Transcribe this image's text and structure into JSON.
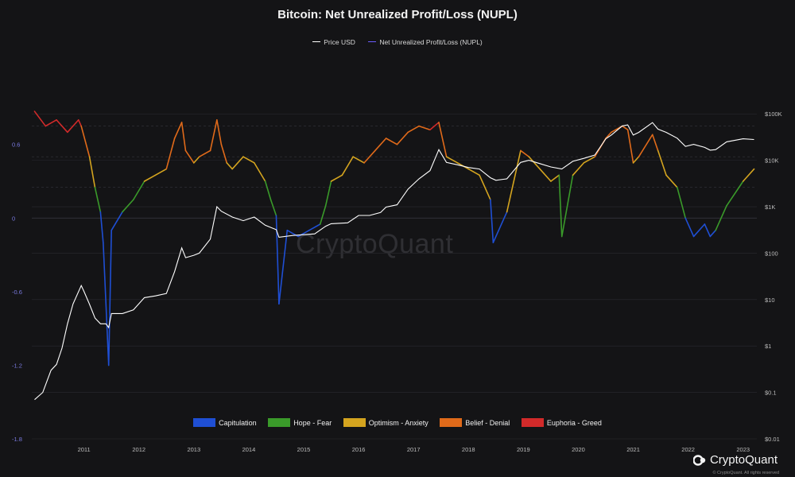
{
  "chart_data": {
    "type": "line",
    "title": "Bitcoin: Net Unrealized Profit/Loss (NUPL)",
    "legend_placement": "top",
    "series": [
      {
        "name": "Price USD",
        "axis": "right",
        "color": "#ffffff",
        "x": [
          2010.6,
          2010.75,
          2010.9,
          2011.0,
          2011.1,
          2011.2,
          2011.3,
          2011.45,
          2011.5,
          2011.6,
          2011.7,
          2011.8,
          2011.9,
          2011.95,
          2012.0,
          2012.2,
          2012.4,
          2012.6,
          2012.8,
          2013.0,
          2013.15,
          2013.28,
          2013.35,
          2013.5,
          2013.6,
          2013.8,
          2013.92,
          2014.0,
          2014.2,
          2014.4,
          2014.6,
          2014.8,
          2015.0,
          2015.05,
          2015.3,
          2015.5,
          2015.7,
          2015.9,
          2016.0,
          2016.3,
          2016.5,
          2016.7,
          2016.9,
          2017.0,
          2017.2,
          2017.4,
          2017.6,
          2017.8,
          2017.96,
          2018.1,
          2018.3,
          2018.5,
          2018.7,
          2018.9,
          2019.0,
          2019.2,
          2019.45,
          2019.6,
          2019.8,
          2020.0,
          2020.2,
          2020.4,
          2020.6,
          2020.8,
          2021.0,
          2021.1,
          2021.3,
          2021.4,
          2021.5,
          2021.6,
          2021.85,
          2021.95,
          2022.1,
          2022.3,
          2022.45,
          2022.6,
          2022.8,
          2022.9,
          2023.0,
          2023.2,
          2023.5,
          2023.7
        ],
        "values": [
          0.07,
          0.1,
          0.3,
          0.4,
          0.9,
          3,
          8,
          20,
          15,
          8,
          4,
          3,
          3,
          2.5,
          5,
          5,
          6,
          11,
          12,
          13.5,
          40,
          130,
          80,
          90,
          100,
          200,
          1000,
          800,
          600,
          500,
          600,
          400,
          320,
          220,
          240,
          250,
          260,
          380,
          430,
          450,
          650,
          650,
          750,
          980,
          1100,
          2400,
          4000,
          6000,
          17000,
          9000,
          8000,
          7000,
          6500,
          4200,
          3700,
          4000,
          9000,
          10000,
          8500,
          7200,
          6500,
          9500,
          11000,
          13000,
          29000,
          35000,
          55000,
          58000,
          35000,
          40000,
          65000,
          47000,
          40000,
          30000,
          20000,
          22000,
          19000,
          16500,
          17000,
          25000,
          29000,
          28000
        ]
      },
      {
        "name": "Net Unrealized Profit/Loss (NUPL)",
        "axis": "left",
        "color": "#6a5cff",
        "x": [
          2010.6,
          2010.8,
          2011.0,
          2011.2,
          2011.4,
          2011.45,
          2011.6,
          2011.7,
          2011.8,
          2011.85,
          2011.9,
          2011.95,
          2012.0,
          2012.2,
          2012.4,
          2012.6,
          2012.8,
          2013.0,
          2013.15,
          2013.28,
          2013.35,
          2013.5,
          2013.6,
          2013.8,
          2013.92,
          2014.0,
          2014.1,
          2014.2,
          2014.4,
          2014.6,
          2014.8,
          2014.9,
          2015.0,
          2015.05,
          2015.2,
          2015.4,
          2015.6,
          2015.8,
          2015.9,
          2016.0,
          2016.2,
          2016.4,
          2016.6,
          2016.8,
          2017.0,
          2017.2,
          2017.4,
          2017.6,
          2017.8,
          2017.96,
          2018.1,
          2018.3,
          2018.5,
          2018.7,
          2018.9,
          2018.95,
          2019.0,
          2019.2,
          2019.45,
          2019.6,
          2019.8,
          2020.0,
          2020.15,
          2020.2,
          2020.4,
          2020.6,
          2020.8,
          2021.0,
          2021.1,
          2021.3,
          2021.4,
          2021.5,
          2021.6,
          2021.85,
          2021.95,
          2022.1,
          2022.3,
          2022.45,
          2022.6,
          2022.8,
          2022.9,
          2023.0,
          2023.2,
          2023.5,
          2023.7
        ],
        "values": [
          0.87,
          0.75,
          0.8,
          0.7,
          0.8,
          0.75,
          0.5,
          0.25,
          0.05,
          -0.2,
          -0.7,
          -1.2,
          -0.1,
          0.05,
          0.15,
          0.3,
          0.35,
          0.4,
          0.65,
          0.78,
          0.55,
          0.45,
          0.5,
          0.55,
          0.8,
          0.6,
          0.45,
          0.4,
          0.5,
          0.45,
          0.3,
          0.15,
          0.02,
          -0.7,
          -0.1,
          -0.15,
          -0.1,
          -0.05,
          0.1,
          0.3,
          0.35,
          0.5,
          0.45,
          0.55,
          0.65,
          0.6,
          0.7,
          0.75,
          0.72,
          0.78,
          0.5,
          0.45,
          0.4,
          0.35,
          0.15,
          -0.2,
          -0.15,
          0.05,
          0.55,
          0.5,
          0.4,
          0.3,
          0.35,
          -0.15,
          0.35,
          0.45,
          0.5,
          0.65,
          0.7,
          0.75,
          0.72,
          0.45,
          0.5,
          0.68,
          0.55,
          0.35,
          0.25,
          0.0,
          -0.15,
          -0.05,
          -0.15,
          -0.1,
          0.1,
          0.3,
          0.4
        ]
      }
    ],
    "left_axis": {
      "ticks": [
        0.6,
        0,
        -0.6,
        -1.2,
        -1.8
      ],
      "range": [
        -1.8,
        1.0
      ]
    },
    "right_axis": {
      "scale": "log",
      "ticks": [
        "$100K",
        "$10K",
        "$1K",
        "$100",
        "$10",
        "$1",
        "$0.1",
        "$0.01"
      ],
      "range": [
        0.01,
        250000
      ]
    },
    "x_axis": {
      "ticks": [
        "2011",
        "2012",
        "2013",
        "2014",
        "2015",
        "2016",
        "2017",
        "2018",
        "2019",
        "2020",
        "2021",
        "2022",
        "2023"
      ],
      "range": [
        2010.55,
        2023.75
      ]
    },
    "zones": [
      {
        "label": "Capitulation",
        "color": "#1f4fd4",
        "max": 0
      },
      {
        "label": "Hope - Fear",
        "color": "#3a9a2a",
        "max": 0.25
      },
      {
        "label": "Optimism - Anxiety",
        "color": "#d4a41f",
        "max": 0.5
      },
      {
        "label": "Belief - Denial",
        "color": "#e06a1a",
        "max": 0.75
      },
      {
        "label": "Euphoria - Greed",
        "color": "#d22a2a",
        "max": 2
      }
    ]
  },
  "watermark": "CryptoQuant",
  "brand": "CryptoQuant",
  "copyright": "© CryptoQuant. All rights reserved"
}
